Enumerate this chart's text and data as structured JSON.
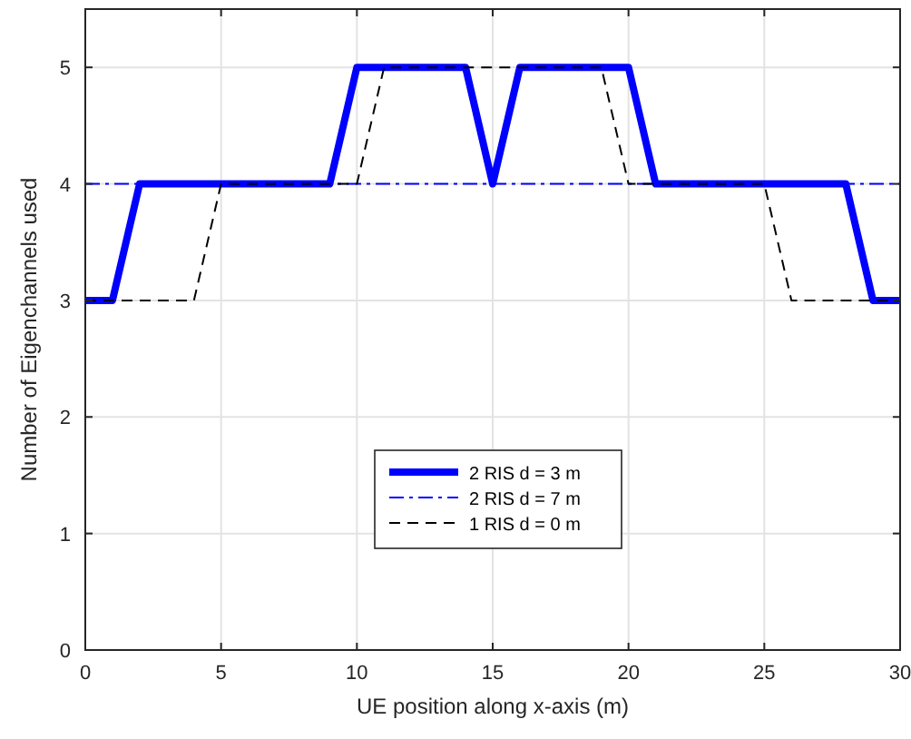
{
  "chart_data": {
    "type": "line",
    "xlabel": "UE position along x-axis (m)",
    "ylabel": "Number of Eigenchannels used",
    "xlim": [
      0,
      30
    ],
    "xticks": [
      0,
      5,
      10,
      15,
      20,
      25,
      30
    ],
    "ylim": [
      0,
      5.5
    ],
    "yticks": [
      0,
      1,
      2,
      3,
      4,
      5
    ],
    "grid": true,
    "legend": "bottom",
    "marker": "none",
    "series": [
      {
        "name": "2 RIS d = 3 m",
        "color": "#0000ff",
        "line_style": "solid",
        "x": [
          0,
          1,
          2,
          9,
          10,
          14,
          15,
          16,
          20,
          21,
          28,
          29,
          30
        ],
        "values": [
          3,
          3,
          4,
          4,
          5,
          5,
          4,
          5,
          5,
          4,
          4,
          3,
          3
        ]
      },
      {
        "name": "2 RIS d = 7 m",
        "color": "#0000ff",
        "line_style": "dashdot",
        "x": [
          0,
          30
        ],
        "values": [
          4,
          4
        ]
      },
      {
        "name": "1 RIS d = 0 m",
        "color": "#000000",
        "line_style": "dashed",
        "x": [
          0,
          4,
          5,
          10,
          11,
          19,
          20,
          25,
          26,
          30
        ],
        "values": [
          3,
          3,
          4,
          4,
          5,
          5,
          4,
          4,
          3,
          3
        ]
      }
    ]
  }
}
